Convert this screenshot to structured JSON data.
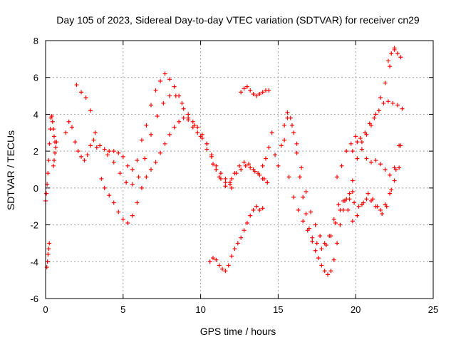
{
  "chart_data": {
    "type": "scatter",
    "title": "Day 105 of 2023, Sidereal Day-to-day VTEC variation (SDTVAR) for receiver cn29",
    "xlabel": "GPS time / hours",
    "ylabel": "SDTVAR / TECUs",
    "xlim": [
      0,
      25
    ],
    "ylim": [
      -6,
      8
    ],
    "xticks": [
      0,
      5,
      10,
      15,
      20,
      25
    ],
    "yticks": [
      -6,
      -4,
      -2,
      0,
      2,
      4,
      6,
      8
    ],
    "grid": true,
    "marker": "+",
    "color": "#ff0000",
    "series": [
      {
        "x": [
          0.0,
          0.05,
          0.1,
          0.15,
          0.2,
          0.25,
          0.3,
          0.35,
          0.4,
          0.45,
          0.5,
          0.55,
          0.6
        ],
        "y": [
          -0.7,
          -0.3,
          0.2,
          0.8,
          1.5,
          2.4,
          3.2,
          3.8,
          3.9,
          3.6,
          3.2,
          2.8,
          2.5
        ]
      },
      {
        "x": [
          0.08,
          0.12,
          0.16,
          0.2,
          0.24
        ],
        "y": [
          -4.3,
          -4.0,
          -3.6,
          -3.3,
          -3.0
        ]
      },
      {
        "x": [
          0.5,
          0.55,
          0.6,
          0.65,
          0.7
        ],
        "y": [
          1.2,
          1.5,
          1.9,
          2.2,
          2.5
        ]
      },
      {
        "x": [
          1.3,
          1.5,
          1.7,
          1.9,
          2.1,
          2.3,
          2.5,
          2.7,
          2.9,
          3.1,
          3.3
        ],
        "y": [
          3.0,
          3.6,
          3.3,
          2.5,
          2.0,
          1.7,
          1.5,
          1.8,
          2.3,
          2.6,
          2.2
        ]
      },
      {
        "x": [
          2.0,
          2.3,
          2.6,
          2.9,
          3.2,
          3.5,
          3.8,
          4.1,
          4.4,
          4.7,
          5.0,
          5.3,
          5.6,
          5.9,
          6.2,
          6.5,
          6.8,
          7.1,
          7.4,
          7.7,
          8.0,
          8.3,
          8.6,
          8.9,
          9.2,
          9.5,
          9.8,
          10.1,
          10.4,
          10.7,
          11.0,
          11.3,
          11.6,
          11.9,
          12.2,
          12.5,
          12.8,
          13.1,
          13.4,
          13.7,
          14.0,
          14.3
        ],
        "y": [
          5.6,
          5.2,
          4.9,
          4.2,
          3.0,
          2.3,
          2.1,
          2.0,
          2.0,
          1.9,
          1.7,
          1.2,
          1.0,
          1.5,
          2.6,
          3.4,
          4.5,
          5.3,
          5.8,
          6.2,
          5.9,
          5.5,
          5.0,
          4.3,
          3.7,
          3.3,
          3.0,
          2.7,
          2.4,
          1.8,
          1.0,
          0.5,
          0.1,
          0.3,
          0.8,
          1.2,
          1.4,
          1.3,
          1.0,
          0.8,
          0.5,
          0.3
        ]
      },
      {
        "x": [
          3.6,
          4.0,
          4.4,
          4.8,
          5.2,
          5.6,
          6.0,
          6.4,
          6.8,
          7.2,
          7.6,
          8.0,
          8.4,
          8.8,
          9.2,
          9.6,
          10.0,
          10.4,
          10.8,
          11.2,
          11.6,
          12.0
        ],
        "y": [
          0.5,
          1.8,
          1.4,
          0.8,
          0.3,
          0.2,
          0.6,
          1.6,
          2.9,
          3.9,
          4.6,
          5.0,
          5.0,
          4.6,
          4.0,
          3.4,
          2.8,
          2.1,
          1.3,
          0.6,
          0.3,
          0.0
        ]
      },
      {
        "x": [
          3.8,
          4.1,
          4.4,
          4.7,
          5.0,
          5.3,
          5.6,
          5.9,
          6.2,
          6.5,
          6.8,
          7.1,
          7.4,
          7.7,
          8.0,
          8.3,
          8.6,
          8.9,
          9.2,
          9.5,
          9.8,
          10.1,
          10.4,
          10.7,
          11.0,
          11.3,
          11.6,
          11.9
        ],
        "y": [
          0.0,
          -0.4,
          -0.8,
          -1.3,
          -1.7,
          -1.9,
          -1.5,
          -0.8,
          0.0,
          0.6,
          1.0,
          1.4,
          1.9,
          2.4,
          2.9,
          3.3,
          3.6,
          3.8,
          3.8,
          3.6,
          3.3,
          2.9,
          2.4,
          1.7,
          1.2,
          0.8,
          0.5,
          0.2
        ]
      },
      {
        "x": [
          12.0,
          12.3,
          12.6,
          12.9,
          13.2,
          13.5,
          13.8,
          14.1,
          14.3
        ],
        "y": [
          0.5,
          0.8,
          1.0,
          1.2,
          1.1,
          0.9,
          0.7,
          0.5,
          0.3
        ]
      },
      {
        "x": [
          10.6,
          10.8,
          11.0,
          11.2,
          11.4,
          11.6,
          11.8,
          12.0,
          12.2,
          12.4,
          12.6,
          12.8,
          13.0,
          13.2,
          13.4,
          13.6,
          13.8,
          14.0
        ],
        "y": [
          -4.0,
          -3.8,
          -3.9,
          -4.2,
          -4.4,
          -4.5,
          -4.2,
          -3.7,
          -3.3,
          -3.0,
          -2.7,
          -2.3,
          -1.9,
          -1.5,
          -1.2,
          -1.0,
          -1.2,
          -1.1
        ]
      },
      {
        "x": [
          12.6,
          12.8,
          13.0,
          13.2,
          13.4,
          13.6,
          13.8,
          14.0,
          14.2,
          14.4
        ],
        "y": [
          5.2,
          5.4,
          5.5,
          5.3,
          5.1,
          5.0,
          5.1,
          5.2,
          5.3,
          5.3
        ]
      },
      {
        "x": [
          14.0,
          14.2,
          14.4,
          14.6,
          14.8,
          15.0,
          15.2,
          15.4,
          15.6,
          15.8,
          16.0,
          16.2,
          16.4,
          16.6,
          16.8,
          17.0,
          17.2,
          17.4,
          17.6,
          17.8,
          18.0,
          18.2,
          18.4,
          18.6,
          18.8,
          19.0,
          19.2,
          19.4,
          19.6,
          19.8
        ],
        "y": [
          1.2,
          1.6,
          2.2,
          3.0,
          1.8,
          1.2,
          2.3,
          3.4,
          4.1,
          3.8,
          3.0,
          1.9,
          0.6,
          -0.5,
          -1.4,
          -2.2,
          -2.9,
          -3.4,
          -3.8,
          -4.2,
          -4.5,
          -4.7,
          -4.5,
          -3.9,
          -3.0,
          -2.0,
          -1.2,
          -0.6,
          -0.3,
          -0.2
        ]
      },
      {
        "x": [
          15.4,
          15.7,
          16.0,
          16.3,
          16.6,
          16.9,
          17.2,
          17.5,
          17.8,
          18.1,
          18.4,
          18.7,
          19.0,
          19.3,
          19.6,
          19.9,
          20.2,
          20.5,
          20.8,
          21.1,
          21.4,
          21.7,
          22.0,
          22.3,
          22.6,
          22.9
        ],
        "y": [
          2.6,
          0.6,
          -0.5,
          -1.2,
          -1.8,
          -2.3,
          -2.7,
          -3.0,
          -3.3,
          -3.1,
          -2.6,
          -1.9,
          -1.2,
          -0.7,
          -0.6,
          -0.8,
          -1.0,
          -0.8,
          -0.3,
          -0.6,
          -1.0,
          -1.4,
          -1.0,
          -0.1,
          1.0,
          2.3
        ]
      },
      {
        "x": [
          15.6,
          15.9,
          16.2,
          16.5,
          16.8,
          17.1,
          17.4,
          17.7,
          18.0,
          18.3,
          18.6,
          18.9,
          19.2,
          19.5,
          19.8,
          20.1,
          20.4,
          20.7,
          21.0,
          21.3,
          21.6,
          21.9,
          22.2,
          22.5,
          22.8
        ],
        "y": [
          3.8,
          3.4,
          2.4,
          1.1,
          -0.2,
          -1.3,
          -2.0,
          -2.6,
          -3.0,
          -2.6,
          -1.7,
          -0.9,
          -0.7,
          -1.2,
          -1.8,
          -1.5,
          -0.9,
          -0.6,
          -0.7,
          -1.0,
          -1.2,
          -0.9,
          -0.3,
          0.4,
          1.1
        ]
      },
      {
        "x": [
          18.8,
          19.1,
          19.4,
          19.7,
          20.0,
          20.3,
          20.6,
          20.9,
          21.2,
          21.5,
          21.8,
          22.1,
          22.4,
          22.7,
          23.0
        ],
        "y": [
          0.6,
          1.2,
          2.0,
          2.4,
          2.8,
          2.7,
          3.0,
          3.5,
          3.8,
          4.2,
          4.6,
          4.7,
          4.6,
          4.5,
          4.3
        ]
      },
      {
        "x": [
          19.8,
          20.1,
          20.4,
          20.7,
          21.0,
          21.3,
          21.6,
          21.9,
          22.2,
          22.5
        ],
        "y": [
          0.4,
          1.6,
          2.5,
          2.9,
          3.4,
          4.0,
          4.9,
          5.7,
          6.6,
          7.5
        ]
      },
      {
        "x": [
          19.8,
          20.1,
          20.4,
          20.7,
          21.0,
          21.3,
          21.6,
          21.9,
          22.2,
          22.5,
          22.8
        ],
        "y": [
          2.0,
          2.5,
          2.1,
          1.6,
          1.4,
          1.5,
          1.3,
          1.0,
          0.7,
          1.1,
          2.3
        ]
      },
      {
        "x": [
          22.1,
          22.3,
          22.5,
          22.7,
          22.9
        ],
        "y": [
          6.9,
          7.3,
          7.6,
          7.3,
          7.1
        ]
      }
    ]
  }
}
